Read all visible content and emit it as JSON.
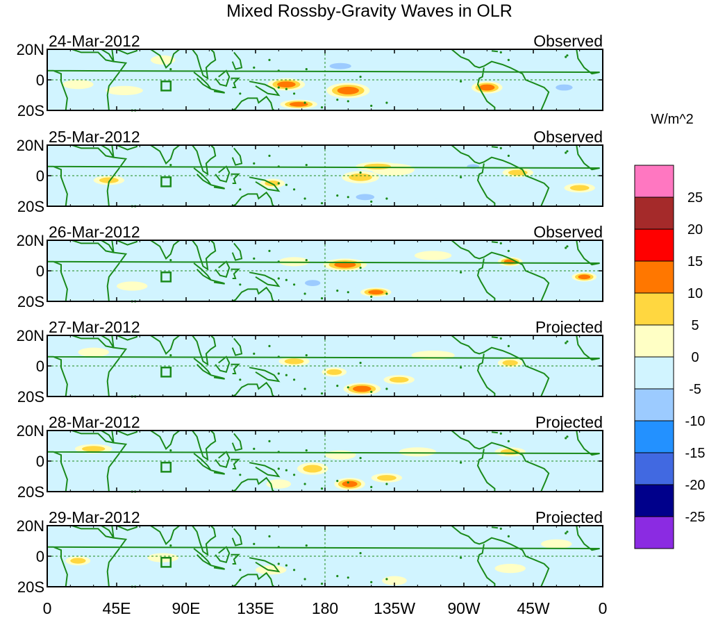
{
  "chart_data": {
    "type": "heatmap",
    "title": "Mixed Rossby-Gravity Waves in OLR",
    "variable": "OLR anomaly",
    "units_label": "W/m^2",
    "x_ticks": [
      "0",
      "45E",
      "90E",
      "135E",
      "180",
      "135W",
      "90W",
      "45W",
      "0"
    ],
    "x_tick_values": [
      0,
      45,
      90,
      135,
      180,
      225,
      270,
      315,
      360
    ],
    "y_ticks": [
      "20N",
      "0",
      "20S"
    ],
    "y_tick_values": [
      20,
      0,
      -20
    ],
    "xlim": [
      0,
      360
    ],
    "ylim": [
      -20,
      20
    ],
    "colorbar_levels": [
      "25",
      "20",
      "15",
      "10",
      "5",
      "0",
      "-5",
      "-10",
      "-15",
      "-20",
      "-25"
    ],
    "colorbar_colors": [
      "#ff77c1",
      "#a52a2a",
      "#ff0000",
      "#ff7700",
      "#ffd740",
      "#ffffc5",
      "#d1f4ff",
      "#9ccbff",
      "#2391ff",
      "#4169e1",
      "#00008b",
      "#8b2be2"
    ],
    "panels": [
      {
        "date": "24-Mar-2012",
        "kind": "Observed",
        "blobs": [
          {
            "lon": 195,
            "lat": -7,
            "rx": 14,
            "ry": 5,
            "v": 14
          },
          {
            "lon": 155,
            "lat": -3,
            "rx": 12,
            "ry": 4,
            "v": 12
          },
          {
            "lon": 163,
            "lat": -16,
            "rx": 12,
            "ry": 3,
            "v": 12
          },
          {
            "lon": 190,
            "lat": 9,
            "rx": 14,
            "ry": 4,
            "v": -11
          },
          {
            "lon": 148,
            "lat": 6,
            "rx": 8,
            "ry": 3,
            "v": -7
          },
          {
            "lon": 220,
            "lat": -16,
            "rx": 10,
            "ry": 3,
            "v": -7
          },
          {
            "lon": 285,
            "lat": -5,
            "rx": 10,
            "ry": 4,
            "v": 12
          },
          {
            "lon": 335,
            "lat": -5,
            "rx": 11,
            "ry": 4,
            "v": -11
          },
          {
            "lon": 235,
            "lat": 11,
            "rx": 14,
            "ry": 3,
            "v": -3
          },
          {
            "lon": 300,
            "lat": 10,
            "rx": 14,
            "ry": 3,
            "v": -4
          },
          {
            "lon": 260,
            "lat": -13,
            "rx": 10,
            "ry": 3,
            "v": -3
          },
          {
            "lon": 105,
            "lat": -7,
            "rx": 12,
            "ry": 3,
            "v": -4
          },
          {
            "lon": 50,
            "lat": -7,
            "rx": 12,
            "ry": 3,
            "v": 3
          },
          {
            "lon": 20,
            "lat": -3,
            "rx": 10,
            "ry": 3,
            "v": 3
          },
          {
            "lon": 75,
            "lat": 13,
            "rx": 8,
            "ry": 3,
            "v": 3
          },
          {
            "lon": 130,
            "lat": -14,
            "rx": 8,
            "ry": 3,
            "v": -4
          }
        ]
      },
      {
        "date": "25-Mar-2012",
        "kind": "Observed",
        "blobs": [
          {
            "lon": 206,
            "lat": -14,
            "rx": 12,
            "ry": 4,
            "v": -12
          },
          {
            "lon": 196,
            "lat": -7,
            "rx": 10,
            "ry": 3,
            "v": -7
          },
          {
            "lon": 203,
            "lat": -1,
            "rx": 12,
            "ry": 4,
            "v": 5
          },
          {
            "lon": 224,
            "lat": 4,
            "rx": 14,
            "ry": 4,
            "v": 4
          },
          {
            "lon": 180,
            "lat": -12,
            "rx": 8,
            "ry": 3,
            "v": -6
          },
          {
            "lon": 170,
            "lat": 3,
            "rx": 10,
            "ry": 3,
            "v": -9
          },
          {
            "lon": 146,
            "lat": -5,
            "rx": 8,
            "ry": 3,
            "v": 7
          },
          {
            "lon": 214,
            "lat": 6,
            "rx": 14,
            "ry": 3,
            "v": 6
          },
          {
            "lon": 276,
            "lat": 6,
            "rx": 8,
            "ry": 3,
            "v": -12
          },
          {
            "lon": 305,
            "lat": 2,
            "rx": 10,
            "ry": 3,
            "v": 7
          },
          {
            "lon": 345,
            "lat": -8,
            "rx": 10,
            "ry": 3,
            "v": 7
          },
          {
            "lon": 85,
            "lat": 8,
            "rx": 10,
            "ry": 3,
            "v": -4
          },
          {
            "lon": 40,
            "lat": -3,
            "rx": 10,
            "ry": 3,
            "v": 5
          },
          {
            "lon": 120,
            "lat": -13,
            "rx": 10,
            "ry": 3,
            "v": -4
          },
          {
            "lon": 75,
            "lat": -12,
            "rx": 10,
            "ry": 3,
            "v": -3
          },
          {
            "lon": 250,
            "lat": -12,
            "rx": 14,
            "ry": 3,
            "v": -3
          },
          {
            "lon": 20,
            "lat": 8,
            "rx": 10,
            "ry": 3,
            "v": -4
          }
        ]
      },
      {
        "date": "26-Mar-2012",
        "kind": "Observed",
        "blobs": [
          {
            "lon": 193,
            "lat": 4,
            "rx": 14,
            "ry": 4,
            "v": 12
          },
          {
            "lon": 213,
            "lat": -14,
            "rx": 10,
            "ry": 3,
            "v": 12
          },
          {
            "lon": 172,
            "lat": -8,
            "rx": 10,
            "ry": 4,
            "v": -12
          },
          {
            "lon": 193,
            "lat": -13,
            "rx": 8,
            "ry": 3,
            "v": -8
          },
          {
            "lon": 300,
            "lat": 6,
            "rx": 8,
            "ry": 3,
            "v": 12
          },
          {
            "lon": 348,
            "lat": -4,
            "rx": 8,
            "ry": 3,
            "v": 13
          },
          {
            "lon": 225,
            "lat": -5,
            "rx": 12,
            "ry": 3,
            "v": -7
          },
          {
            "lon": 260,
            "lat": -11,
            "rx": 12,
            "ry": 3,
            "v": -3
          },
          {
            "lon": 130,
            "lat": -8,
            "rx": 10,
            "ry": 3,
            "v": -4
          },
          {
            "lon": 55,
            "lat": -10,
            "rx": 10,
            "ry": 3,
            "v": 4
          },
          {
            "lon": 25,
            "lat": 10,
            "rx": 10,
            "ry": 3,
            "v": -4
          },
          {
            "lon": 95,
            "lat": 4,
            "rx": 10,
            "ry": 3,
            "v": -3
          },
          {
            "lon": 250,
            "lat": 10,
            "rx": 12,
            "ry": 3,
            "v": 3
          },
          {
            "lon": 160,
            "lat": 6,
            "rx": 10,
            "ry": 3,
            "v": 4
          },
          {
            "lon": 320,
            "lat": -8,
            "rx": 10,
            "ry": 3,
            "v": -3
          }
        ]
      },
      {
        "date": "27-Mar-2012",
        "kind": "Projected",
        "blobs": [
          {
            "lon": 204,
            "lat": -15,
            "rx": 12,
            "ry": 4,
            "v": 13
          },
          {
            "lon": 186,
            "lat": -4,
            "rx": 8,
            "ry": 3,
            "v": 7
          },
          {
            "lon": 214,
            "lat": 2,
            "rx": 10,
            "ry": 3,
            "v": -6
          },
          {
            "lon": 160,
            "lat": 3,
            "rx": 10,
            "ry": 3,
            "v": 6
          },
          {
            "lon": 300,
            "lat": 2,
            "rx": 8,
            "ry": 3,
            "v": 8
          },
          {
            "lon": 303,
            "lat": -5,
            "rx": 8,
            "ry": 3,
            "v": -7
          },
          {
            "lon": 228,
            "lat": -9,
            "rx": 10,
            "ry": 3,
            "v": 5
          },
          {
            "lon": 120,
            "lat": -7,
            "rx": 10,
            "ry": 3,
            "v": -4
          },
          {
            "lon": 30,
            "lat": 9,
            "rx": 10,
            "ry": 3,
            "v": 4
          },
          {
            "lon": 50,
            "lat": -6,
            "rx": 10,
            "ry": 3,
            "v": -3
          },
          {
            "lon": 250,
            "lat": 7,
            "rx": 14,
            "ry": 3,
            "v": 3
          },
          {
            "lon": 340,
            "lat": 6,
            "rx": 10,
            "ry": 3,
            "v": -3
          },
          {
            "lon": 90,
            "lat": -12,
            "rx": 10,
            "ry": 3,
            "v": -3
          }
        ]
      },
      {
        "date": "28-Mar-2012",
        "kind": "Projected",
        "blobs": [
          {
            "lon": 196,
            "lat": -15,
            "rx": 10,
            "ry": 4,
            "v": 13
          },
          {
            "lon": 172,
            "lat": -5,
            "rx": 10,
            "ry": 4,
            "v": 8
          },
          {
            "lon": 200,
            "lat": -5,
            "rx": 10,
            "ry": 3,
            "v": -5
          },
          {
            "lon": 220,
            "lat": -11,
            "rx": 10,
            "ry": 3,
            "v": 5
          },
          {
            "lon": 190,
            "lat": 4,
            "rx": 10,
            "ry": 3,
            "v": 3
          },
          {
            "lon": 30,
            "lat": 8,
            "rx": 12,
            "ry": 3,
            "v": 5
          },
          {
            "lon": 60,
            "lat": -11,
            "rx": 10,
            "ry": 3,
            "v": -4
          },
          {
            "lon": 105,
            "lat": -10,
            "rx": 10,
            "ry": 3,
            "v": -3
          },
          {
            "lon": 255,
            "lat": -10,
            "rx": 14,
            "ry": 3,
            "v": -3
          },
          {
            "lon": 300,
            "lat": 6,
            "rx": 10,
            "ry": 3,
            "v": 5
          },
          {
            "lon": 150,
            "lat": -15,
            "rx": 8,
            "ry": 3,
            "v": 4
          },
          {
            "lon": 240,
            "lat": 6,
            "rx": 12,
            "ry": 3,
            "v": 3
          }
        ]
      },
      {
        "date": "29-Mar-2012",
        "kind": "Projected",
        "blobs": [
          {
            "lon": 180,
            "lat": -16,
            "rx": 10,
            "ry": 3,
            "v": -7
          },
          {
            "lon": 225,
            "lat": -16,
            "rx": 8,
            "ry": 3,
            "v": 4
          },
          {
            "lon": 20,
            "lat": -3,
            "rx": 8,
            "ry": 3,
            "v": 5
          },
          {
            "lon": 75,
            "lat": -1,
            "rx": 10,
            "ry": 3,
            "v": 4
          },
          {
            "lon": 35,
            "lat": 10,
            "rx": 12,
            "ry": 3,
            "v": -5
          },
          {
            "lon": 145,
            "lat": -9,
            "rx": 10,
            "ry": 3,
            "v": 4
          },
          {
            "lon": 160,
            "lat": -1,
            "rx": 8,
            "ry": 3,
            "v": -4
          },
          {
            "lon": 250,
            "lat": 4,
            "rx": 14,
            "ry": 3,
            "v": -3
          },
          {
            "lon": 300,
            "lat": -8,
            "rx": 10,
            "ry": 3,
            "v": 3
          },
          {
            "lon": 110,
            "lat": 12,
            "rx": 12,
            "ry": 3,
            "v": -3
          },
          {
            "lon": 330,
            "lat": 8,
            "rx": 10,
            "ry": 3,
            "v": 3
          }
        ]
      }
    ]
  }
}
